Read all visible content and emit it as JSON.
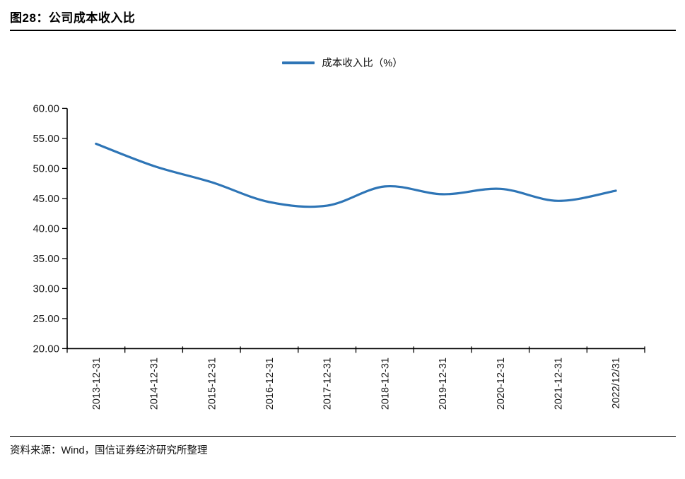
{
  "header": {
    "title": "图28：公司成本收入比"
  },
  "legend": {
    "label": "成本收入比（%）"
  },
  "chart_data": {
    "type": "line",
    "title": "公司成本收入比",
    "categories": [
      "2013-12-31",
      "2014-12-31",
      "2015-12-31",
      "2016-12-31",
      "2017-12-31",
      "2018-12-31",
      "2019-12-31",
      "2020-12-31",
      "2021-12-31",
      "2022/12/31"
    ],
    "series": [
      {
        "name": "成本收入比（%）",
        "color": "#2E75B6",
        "values": [
          54.1,
          50.4,
          47.7,
          44.4,
          43.8,
          47.0,
          45.7,
          46.6,
          44.6,
          46.3
        ]
      }
    ],
    "xlabel": "",
    "ylabel": "",
    "ylim": [
      20,
      60
    ],
    "ytick_step": 5,
    "ytick_labels": [
      "60.00",
      "55.00",
      "50.00",
      "45.00",
      "40.00",
      "35.00",
      "30.00",
      "25.00",
      "20.00"
    ],
    "grid": false,
    "smooth": true,
    "legend_position": "top-center"
  },
  "footer": {
    "source": "资料来源：Wind，国信证券经济研究所整理"
  }
}
